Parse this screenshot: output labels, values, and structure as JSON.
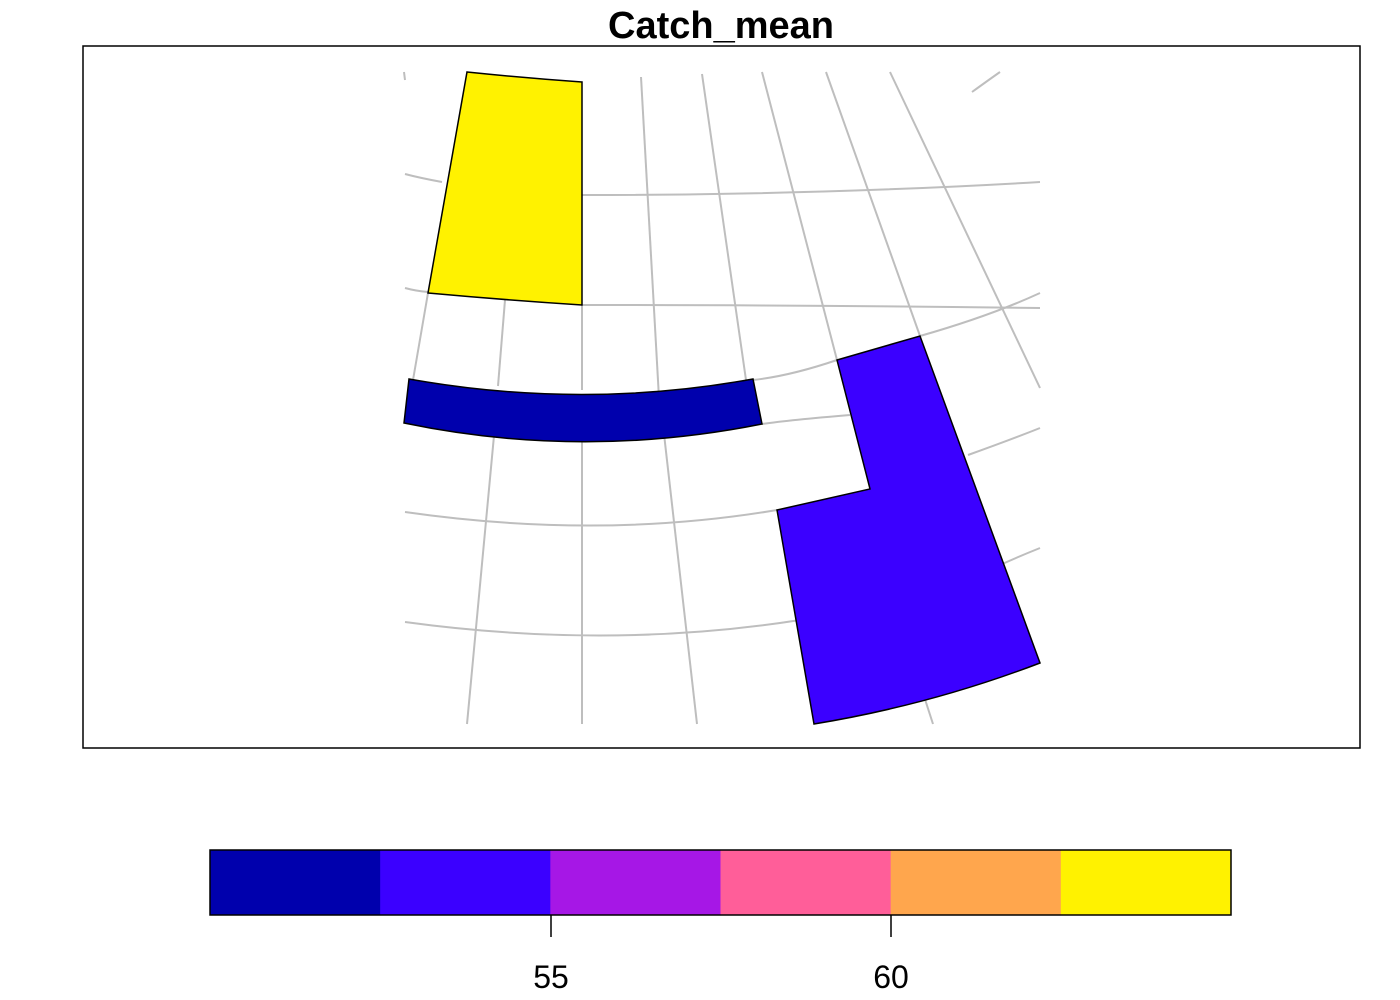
{
  "map": {
    "title": "Catch_mean",
    "graticule_color": "#bebebe",
    "features": [
      {
        "id": "cell-yellow",
        "fill": "#fff200"
      },
      {
        "id": "cell-darkblue-band",
        "fill": "#0000ad"
      },
      {
        "id": "cell-blue-l-shape",
        "fill": "#3b00ff"
      }
    ]
  },
  "legend": {
    "bins": [
      {
        "color": "#0000ad"
      },
      {
        "color": "#3b00ff"
      },
      {
        "color": "#a617e6"
      },
      {
        "color": "#ff5e99"
      },
      {
        "color": "#ffa64d"
      },
      {
        "color": "#fff200"
      }
    ],
    "ticks": [
      {
        "label": "55"
      },
      {
        "label": "60"
      }
    ]
  }
}
